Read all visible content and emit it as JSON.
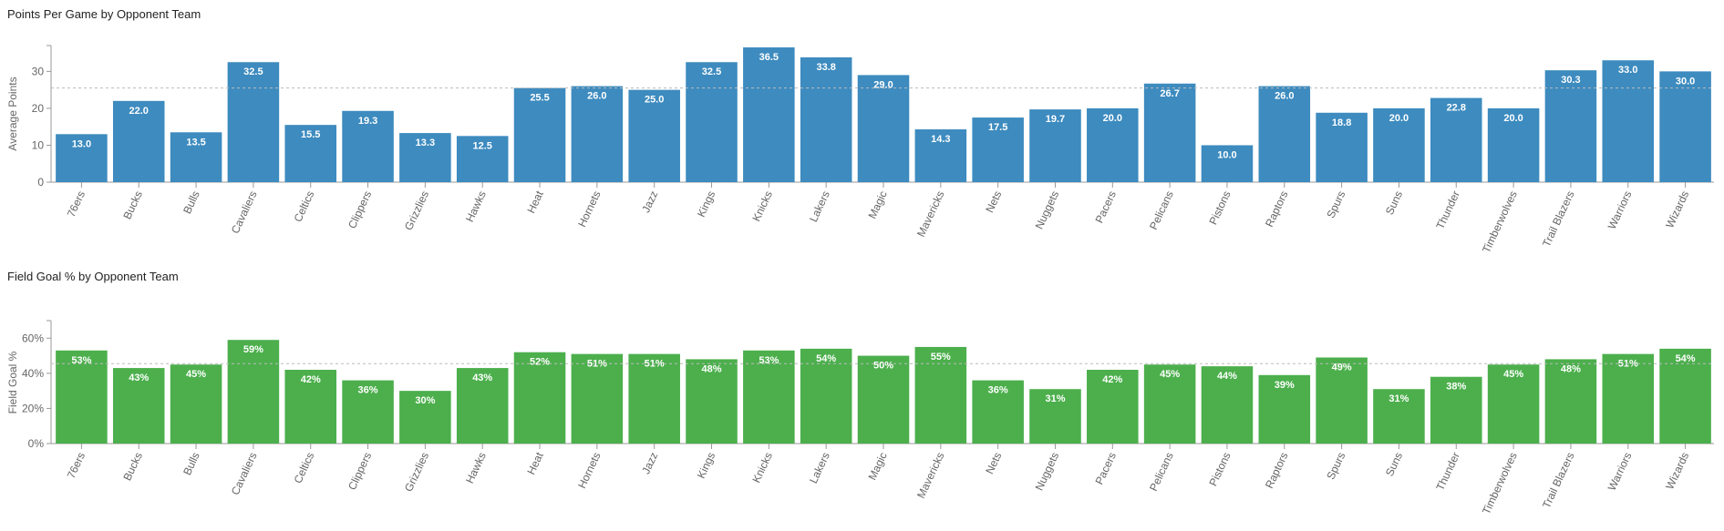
{
  "charts": [
    {
      "title": "Points Per Game by Opponent Team"
    },
    {
      "title": "Field Goal % by Opponent Team"
    }
  ],
  "chart_data": [
    {
      "type": "bar",
      "title": "Points Per Game by Opponent Team",
      "xlabel": "",
      "ylabel": "Average Points",
      "ylim": [
        0,
        37
      ],
      "yticks": [
        0,
        10,
        20,
        30
      ],
      "ytick_labels": [
        "0",
        "10",
        "20",
        "30"
      ],
      "reference_line": 25.5,
      "color": "#3d8bbf",
      "grid": false,
      "categories": [
        "76ers",
        "Bucks",
        "Bulls",
        "Cavaliers",
        "Celtics",
        "Clippers",
        "Grizzlies",
        "Hawks",
        "Heat",
        "Hornets",
        "Jazz",
        "Kings",
        "Knicks",
        "Lakers",
        "Magic",
        "Mavericks",
        "Nets",
        "Nuggets",
        "Pacers",
        "Pelicans",
        "Pistons",
        "Raptors",
        "Spurs",
        "Suns",
        "Thunder",
        "Timberwolves",
        "Trail Blazers",
        "Warriors",
        "Wizards"
      ],
      "values": [
        13.0,
        22.0,
        13.5,
        32.5,
        15.5,
        19.3,
        13.3,
        12.5,
        25.5,
        26.0,
        25.0,
        32.5,
        36.5,
        33.8,
        29.0,
        14.3,
        17.5,
        19.7,
        20.0,
        26.7,
        10.0,
        26.0,
        18.8,
        20.0,
        22.8,
        20.0,
        30.3,
        33.0,
        30.0
      ],
      "data_labels": [
        "13.0",
        "22.0",
        "13.5",
        "32.5",
        "15.5",
        "19.3",
        "13.3",
        "12.5",
        "25.5",
        "26.0",
        "25.0",
        "32.5",
        "36.5",
        "33.8",
        "29.0",
        "14.3",
        "17.5",
        "19.7",
        "20.0",
        "26.7",
        "10.0",
        "26.0",
        "18.8",
        "20.0",
        "22.8",
        "20.0",
        "30.3",
        "33.0",
        "30.0"
      ]
    },
    {
      "type": "bar",
      "title": "Field Goal % by Opponent Team",
      "xlabel": "",
      "ylabel": "Field Goal %",
      "ylim": [
        0,
        0.7
      ],
      "yticks": [
        0,
        0.2,
        0.4,
        0.6
      ],
      "ytick_labels": [
        "0%",
        "20%",
        "40%",
        "60%"
      ],
      "reference_line": 0.455,
      "color": "#4caf4c",
      "grid": false,
      "categories": [
        "76ers",
        "Bucks",
        "Bulls",
        "Cavaliers",
        "Celtics",
        "Clippers",
        "Grizzlies",
        "Hawks",
        "Heat",
        "Hornets",
        "Jazz",
        "Kings",
        "Knicks",
        "Lakers",
        "Magic",
        "Mavericks",
        "Nets",
        "Nuggets",
        "Pacers",
        "Pelicans",
        "Pistons",
        "Raptors",
        "Spurs",
        "Suns",
        "Thunder",
        "Timberwolves",
        "Trail Blazers",
        "Warriors",
        "Wizards"
      ],
      "values": [
        0.53,
        0.43,
        0.45,
        0.59,
        0.42,
        0.36,
        0.3,
        0.43,
        0.52,
        0.51,
        0.51,
        0.48,
        0.53,
        0.54,
        0.5,
        0.55,
        0.36,
        0.31,
        0.42,
        0.45,
        0.44,
        0.39,
        0.49,
        0.31,
        0.38,
        0.45,
        0.48,
        0.51,
        0.54
      ],
      "data_labels": [
        "53%",
        "43%",
        "45%",
        "59%",
        "42%",
        "36%",
        "30%",
        "43%",
        "52%",
        "51%",
        "51%",
        "48%",
        "53%",
        "54%",
        "50%",
        "55%",
        "36%",
        "31%",
        "42%",
        "45%",
        "44%",
        "39%",
        "49%",
        "31%",
        "38%",
        "45%",
        "48%",
        "51%",
        "54%"
      ]
    }
  ]
}
